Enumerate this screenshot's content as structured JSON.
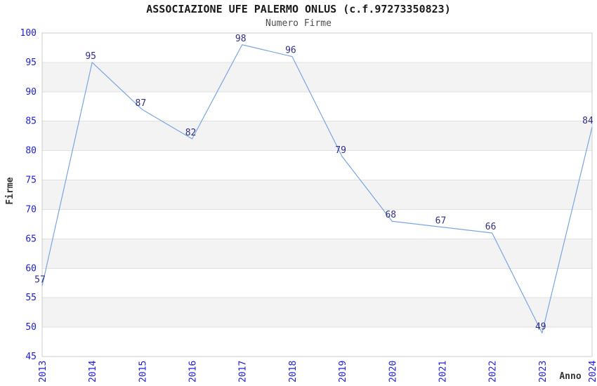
{
  "chart_data": {
    "type": "line",
    "title": "ASSOCIAZIONE UFE PALERMO ONLUS (c.f.97273350823)",
    "subtitle": "Numero Firme",
    "xlabel": "Anno",
    "ylabel": "Firme",
    "categories": [
      "2013",
      "2014",
      "2015",
      "2016",
      "2017",
      "2018",
      "2019",
      "2020",
      "2021",
      "2022",
      "2023",
      "2024"
    ],
    "values": [
      57,
      95,
      87,
      82,
      98,
      96,
      79,
      68,
      67,
      66,
      49,
      84
    ],
    "ylim": [
      45,
      100
    ],
    "ytick_step": 5,
    "yticks": [
      45,
      50,
      55,
      60,
      65,
      70,
      75,
      80,
      85,
      90,
      95,
      100
    ],
    "legend": "none",
    "grid": "horizontal gridlines every 5 units with alternating white/gray bands",
    "x_tick_rotation": -90,
    "point_labels_shown": true,
    "colors": {
      "line": "#79a6e1",
      "tick_label": "#1c1cd6",
      "point_label": "#2e2e85",
      "band_gray": "#f3f3f3",
      "band_white": "#ffffff",
      "gridline": "#e0e0e0",
      "plot_border": "#cccccc",
      "title": "#1a1a1a",
      "subtitle": "#4d4d4d",
      "axis_label": "#333333",
      "background": "#ffffff"
    }
  }
}
